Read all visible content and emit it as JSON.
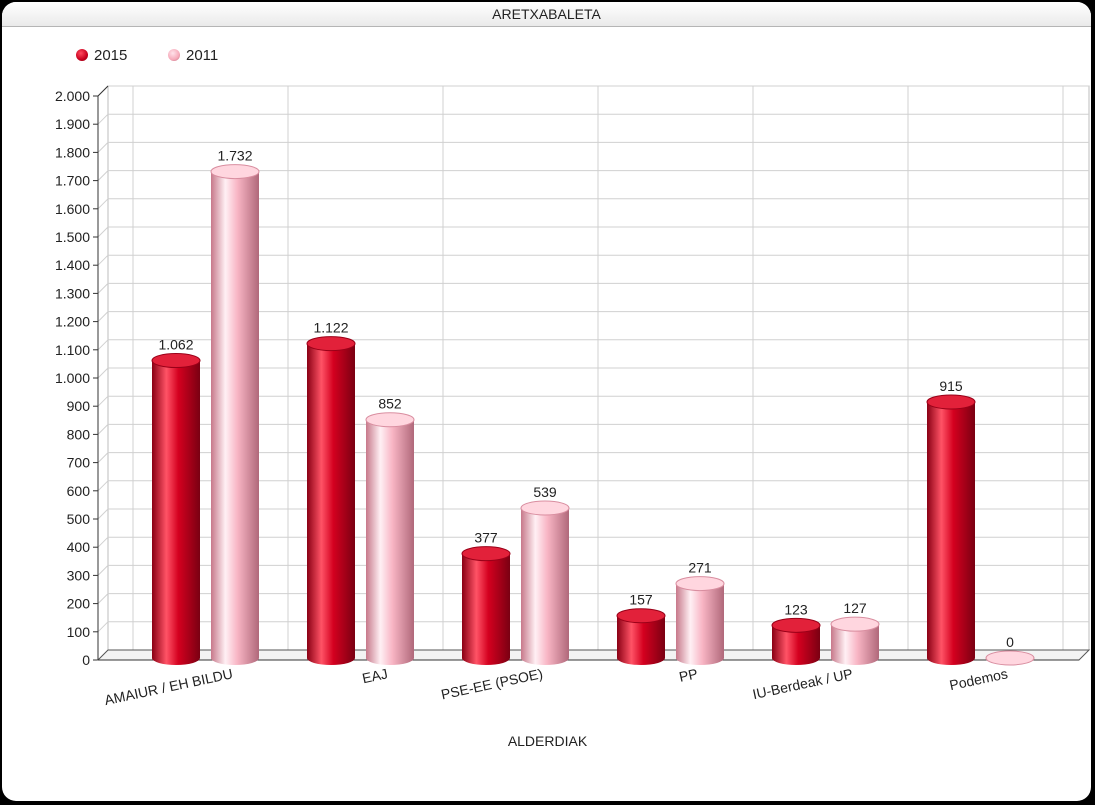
{
  "window": {
    "title": "ARETXABALETA"
  },
  "colors": {
    "series_2015": "#c8001e",
    "series_2011": "#f6a9b9"
  },
  "chart_data": {
    "type": "bar",
    "title": "ARETXABALETA",
    "xlabel": "ALDERDIAK",
    "ylabel": "",
    "categories": [
      "AMAIUR / EH BILDU",
      "EAJ",
      "PSE-EE (PSOE)",
      "PP",
      "IU-Berdeak / UP",
      "Podemos"
    ],
    "series": [
      {
        "name": "2015",
        "values": [
          1062,
          1122,
          377,
          157,
          123,
          915
        ],
        "labels": [
          "1.062",
          "1.122",
          "377",
          "157",
          "123",
          "915"
        ]
      },
      {
        "name": "2011",
        "values": [
          1732,
          852,
          539,
          271,
          127,
          0
        ],
        "labels": [
          "1.732",
          "852",
          "539",
          "271",
          "127",
          "0"
        ]
      }
    ],
    "ylim": [
      0,
      2000
    ],
    "yticks": [
      0,
      100,
      200,
      300,
      400,
      500,
      600,
      700,
      800,
      900,
      1000,
      1100,
      1200,
      1300,
      1400,
      1500,
      1600,
      1700,
      1800,
      1900,
      2000
    ],
    "ytick_labels": [
      "0",
      "100",
      "200",
      "300",
      "400",
      "500",
      "600",
      "700",
      "800",
      "900",
      "1.000",
      "1.100",
      "1.200",
      "1.300",
      "1.400",
      "1.500",
      "1.600",
      "1.700",
      "1.800",
      "1.900",
      "2.000"
    ],
    "grid": true,
    "legend_position": "top-left"
  }
}
